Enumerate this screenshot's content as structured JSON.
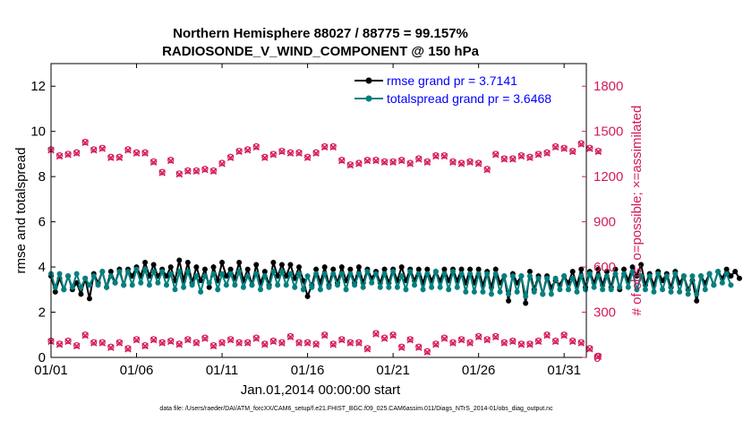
{
  "chart_data": {
    "type": "line",
    "title": "Northern Hemisphere 88027 / 88775 = 99.157%",
    "subtitle": "RADIOSONDE_V_WIND_COMPONENT @ 150 hPa",
    "xlabel": "Jan.01,2014 00:00:00 start",
    "ylabel_left": "rmse and totalspread",
    "ylabel_right": "# of obs: o=possible; ×=assimilated",
    "footnote": "data file: /Users/raeder/DAI/ATM_forcXX/CAM6_setup/f.e21.FHIST_BGC.f09_025.CAM6assim.011/Diags_NTrS_2014-01/obs_diag_output.nc",
    "x_ticks": [
      "01/01",
      "01/06",
      "01/11",
      "01/16",
      "01/21",
      "01/26",
      "01/31"
    ],
    "x_tick_days": [
      1,
      6,
      11,
      16,
      21,
      26,
      31
    ],
    "xlim_days": [
      1,
      32.3
    ],
    "y_left_ticks": [
      "0",
      "2",
      "4",
      "6",
      "8",
      "10",
      "12"
    ],
    "y_left_tick_values": [
      0,
      2,
      4,
      6,
      8,
      10,
      12
    ],
    "y_left_lim": [
      0,
      13
    ],
    "y_right_ticks": [
      "0",
      "300",
      "600",
      "900",
      "1200",
      "1500",
      "1800"
    ],
    "y_right_tick_values": [
      0,
      300,
      600,
      900,
      1200,
      1500,
      1800
    ],
    "y_right_lim": [
      0,
      1950
    ],
    "legend_position": "top-right",
    "colors": {
      "rmse": "#000000",
      "totalspread": "#00807f",
      "obs": "#d41a5c",
      "legend_text": "#0000ff"
    },
    "series": [
      {
        "name": "rmse grand pr = 3.7141",
        "x_start_day": 1,
        "x_step_days": 0.25,
        "values": [
          3.6,
          2.9,
          3.5,
          3.0,
          3.6,
          3.0,
          3.3,
          2.8,
          3.5,
          2.6,
          3.7,
          3.3,
          3.8,
          3.1,
          3.8,
          3.3,
          3.9,
          3.2,
          3.9,
          3.6,
          4.0,
          3.6,
          4.2,
          3.6,
          4.1,
          3.6,
          3.9,
          3.6,
          4.0,
          3.4,
          4.3,
          3.4,
          4.2,
          3.3,
          4.0,
          3.4,
          3.9,
          3.1,
          4.0,
          3.4,
          4.2,
          3.6,
          3.9,
          3.5,
          4.2,
          3.4,
          3.9,
          3.2,
          4.1,
          3.3,
          3.8,
          3.2,
          4.2,
          3.6,
          4.1,
          3.6,
          4.1,
          3.5,
          4.0,
          3.4,
          2.7,
          3.2,
          3.9,
          3.3,
          4.0,
          3.2,
          3.9,
          3.3,
          4.0,
          3.4,
          3.9,
          3.3,
          4.0,
          3.3,
          3.9,
          3.5,
          3.8,
          3.3,
          3.9,
          3.3,
          3.9,
          3.4,
          4.0,
          3.4,
          3.9,
          3.4,
          3.9,
          3.3,
          3.9,
          3.4,
          3.8,
          3.4,
          3.9,
          3.4,
          3.9,
          3.4,
          3.9,
          3.3,
          3.9,
          3.3,
          3.9,
          3.2,
          3.8,
          3.1,
          3.9,
          3.3,
          3.6,
          2.5,
          3.7,
          3.3,
          3.6,
          2.4,
          3.8,
          3.0,
          3.6,
          2.8,
          3.6,
          3.1,
          3.4,
          3.2,
          3.6,
          3.3,
          3.8,
          3.2,
          3.9,
          3.1,
          3.8,
          3.3,
          3.9,
          3.2,
          3.8,
          3.1,
          3.9,
          3.0,
          3.9,
          3.4,
          4.0,
          3.6,
          4.1,
          3.2,
          3.7,
          3.2,
          3.8,
          3.4,
          3.7,
          3.1,
          3.8,
          3.3,
          3.6,
          3.0,
          3.4,
          2.5,
          3.6,
          3.3,
          3.7,
          3.2,
          3.8,
          3.5,
          3.9,
          3.6,
          3.8,
          3.5
        ]
      },
      {
        "name": "totalspread grand pr = 3.6468",
        "x_start_day": 1,
        "x_step_days": 0.25,
        "values": [
          3.7,
          3.1,
          3.7,
          3.0,
          3.6,
          3.1,
          3.7,
          3.1,
          3.5,
          3.2,
          3.6,
          3.2,
          3.8,
          3.1,
          3.6,
          3.3,
          3.8,
          3.2,
          3.8,
          3.2,
          3.9,
          3.3,
          3.9,
          3.2,
          3.8,
          3.3,
          3.8,
          3.2,
          3.7,
          3.0,
          3.8,
          3.1,
          3.8,
          3.2,
          3.6,
          2.9,
          3.6,
          3.3,
          3.7,
          3.0,
          3.7,
          3.2,
          3.7,
          3.2,
          3.8,
          3.1,
          3.6,
          3.2,
          3.7,
          3.0,
          3.6,
          3.1,
          3.8,
          3.2,
          3.8,
          3.2,
          3.7,
          3.1,
          3.7,
          3.0,
          3.6,
          3.1,
          3.7,
          3.0,
          3.7,
          3.1,
          3.7,
          3.2,
          3.7,
          3.0,
          3.7,
          3.2,
          3.7,
          3.1,
          3.8,
          3.3,
          3.7,
          3.1,
          3.7,
          3.1,
          3.8,
          3.1,
          3.6,
          3.0,
          3.8,
          3.2,
          3.7,
          3.0,
          3.7,
          3.1,
          3.8,
          3.1,
          3.7,
          3.0,
          3.8,
          3.1,
          3.7,
          2.9,
          3.7,
          2.9,
          3.7,
          2.9,
          3.7,
          2.8,
          3.7,
          2.9,
          3.6,
          2.8,
          3.6,
          2.9,
          3.6,
          2.7,
          3.6,
          2.9,
          3.5,
          2.8,
          3.5,
          2.8,
          3.5,
          3.0,
          3.6,
          3.0,
          3.5,
          2.9,
          3.6,
          3.0,
          3.7,
          3.1,
          3.6,
          3.0,
          3.6,
          3.0,
          3.7,
          3.1,
          3.7,
          3.1,
          3.8,
          3.0,
          3.6,
          3.0,
          3.6,
          2.9,
          3.7,
          3.0,
          3.6,
          2.9,
          3.7,
          2.9,
          3.6,
          2.8,
          3.6,
          2.8,
          3.6,
          3.0,
          3.7,
          3.2,
          3.8,
          3.3,
          3.7,
          3.2
        ]
      },
      {
        "name": "obs possible (upper)",
        "x_start_day": 1,
        "x_step_days": 0.5,
        "values": [
          1380,
          1340,
          1350,
          1360,
          1430,
          1380,
          1390,
          1330,
          1330,
          1380,
          1360,
          1360,
          1300,
          1230,
          1310,
          1220,
          1240,
          1240,
          1250,
          1240,
          1290,
          1330,
          1370,
          1380,
          1400,
          1330,
          1350,
          1370,
          1360,
          1360,
          1330,
          1360,
          1400,
          1400,
          1310,
          1280,
          1290,
          1310,
          1310,
          1300,
          1300,
          1310,
          1290,
          1320,
          1300,
          1340,
          1340,
          1300,
          1290,
          1300,
          1290,
          1250,
          1350,
          1320,
          1320,
          1340,
          1330,
          1350,
          1360,
          1400,
          1390,
          1370,
          1420,
          1390,
          1370
        ],
        "assimilated_values": [
          1375,
          1335,
          1345,
          1355,
          1425,
          1375,
          1385,
          1325,
          1325,
          1375,
          1355,
          1355,
          1295,
          1225,
          1305,
          1215,
          1235,
          1235,
          1245,
          1235,
          1285,
          1325,
          1365,
          1375,
          1395,
          1325,
          1345,
          1365,
          1355,
          1355,
          1325,
          1355,
          1395,
          1395,
          1305,
          1275,
          1285,
          1305,
          1305,
          1295,
          1295,
          1305,
          1285,
          1315,
          1295,
          1335,
          1335,
          1295,
          1285,
          1295,
          1285,
          1245,
          1345,
          1315,
          1315,
          1335,
          1325,
          1345,
          1355,
          1395,
          1385,
          1365,
          1415,
          1385,
          1365
        ]
      },
      {
        "name": "obs possible (lower)",
        "x_start_day": 1,
        "x_step_days": 0.5,
        "values": [
          110,
          90,
          110,
          80,
          150,
          100,
          100,
          70,
          100,
          60,
          120,
          80,
          120,
          100,
          110,
          90,
          120,
          100,
          130,
          80,
          100,
          120,
          100,
          100,
          130,
          90,
          110,
          100,
          140,
          100,
          100,
          90,
          150,
          90,
          120,
          100,
          100,
          60,
          160,
          130,
          150,
          70,
          120,
          70,
          40,
          90,
          130,
          100,
          120,
          100,
          140,
          120,
          140,
          100,
          110,
          90,
          90,
          110,
          150,
          110,
          150,
          110,
          100,
          60,
          10
        ],
        "assimilated_values": [
          105,
          85,
          105,
          75,
          145,
          95,
          95,
          65,
          95,
          55,
          115,
          75,
          115,
          95,
          105,
          85,
          115,
          95,
          125,
          75,
          95,
          115,
          95,
          95,
          125,
          85,
          105,
          95,
          135,
          95,
          95,
          85,
          145,
          85,
          115,
          95,
          95,
          55,
          155,
          125,
          145,
          65,
          115,
          65,
          35,
          85,
          125,
          95,
          115,
          95,
          135,
          115,
          135,
          95,
          105,
          85,
          85,
          105,
          145,
          105,
          145,
          105,
          95,
          55,
          5
        ]
      }
    ]
  }
}
